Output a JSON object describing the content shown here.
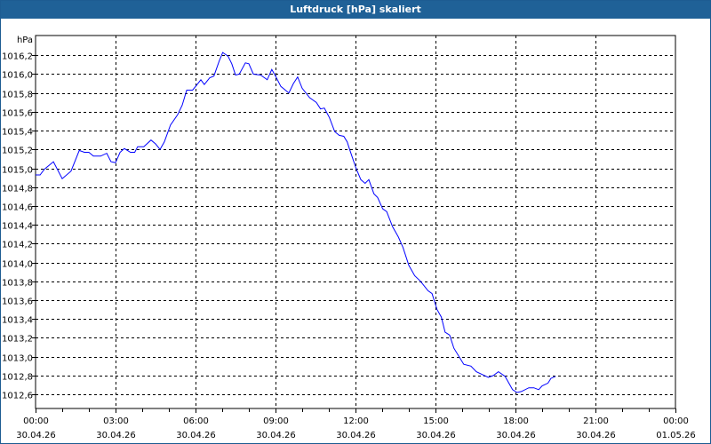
{
  "window": {
    "title": "Luftdruck [hPa] skaliert"
  },
  "chart_data": {
    "type": "line",
    "title": "Luftdruck [hPa] skaliert",
    "ylabel": "hPa",
    "xlabel": "",
    "ylim": [
      1012.45,
      1016.41
    ],
    "xlim_hours": [
      0,
      24
    ],
    "grid": true,
    "yticks": [
      1012.6,
      1012.8,
      1013.0,
      1013.2,
      1013.4,
      1013.6,
      1013.8,
      1014.0,
      1014.2,
      1014.4,
      1014.6,
      1014.8,
      1015.0,
      1015.2,
      1015.4,
      1015.6,
      1015.8,
      1016.0,
      1016.2
    ],
    "ytick_labels": [
      "1012,6",
      "1012,8",
      "1013,0",
      "1013,2",
      "1013,4",
      "1013,6",
      "1013,8",
      "1014,0",
      "1014,2",
      "1014,4",
      "1014,6",
      "1014,8",
      "1015,0",
      "1015,2",
      "1015,4",
      "1015,6",
      "1015,8",
      "1016,0",
      "1016,2"
    ],
    "xticks": [
      {
        "hour": 0,
        "time": "00:00",
        "date": "30.04.26"
      },
      {
        "hour": 3,
        "time": "03:00",
        "date": "30.04.26"
      },
      {
        "hour": 6,
        "time": "06:00",
        "date": "30.04.26"
      },
      {
        "hour": 9,
        "time": "09:00",
        "date": "30.04.26"
      },
      {
        "hour": 12,
        "time": "12:00",
        "date": "30.04.26"
      },
      {
        "hour": 15,
        "time": "15:00",
        "date": "30.04.26"
      },
      {
        "hour": 18,
        "time": "18:00",
        "date": "30.04.26"
      },
      {
        "hour": 21,
        "time": "21:00",
        "date": "30.04.26"
      },
      {
        "hour": 24,
        "time": "00:00",
        "date": "01.05.26"
      }
    ],
    "series": [
      {
        "name": "Luftdruck",
        "color": "#0000ff",
        "x": [
          0,
          0.17,
          0.33,
          0.67,
          1.0,
          1.33,
          1.64,
          1.83,
          2.0,
          2.17,
          2.44,
          2.67,
          2.83,
          3.0,
          3.17,
          3.33,
          3.56,
          3.72,
          3.83,
          4.06,
          4.33,
          4.5,
          4.67,
          4.83,
          5.06,
          5.33,
          5.5,
          5.67,
          5.89,
          6.06,
          6.2,
          6.33,
          6.53,
          6.69,
          6.89,
          7.02,
          7.22,
          7.36,
          7.5,
          7.64,
          7.87,
          8.0,
          8.17,
          8.44,
          8.69,
          8.86,
          9.0,
          9.2,
          9.5,
          9.67,
          9.83,
          10.0,
          10.28,
          10.53,
          10.69,
          10.83,
          11.02,
          11.22,
          11.39,
          11.56,
          11.69,
          11.78,
          12.02,
          12.2,
          12.36,
          12.5,
          12.69,
          12.83,
          13.02,
          13.17,
          13.39,
          13.61,
          13.78,
          14.0,
          14.22,
          14.44,
          14.72,
          14.87,
          15.06,
          15.22,
          15.36,
          15.53,
          15.69,
          16.06,
          16.33,
          16.53,
          16.98,
          17.17,
          17.36,
          17.61,
          17.89,
          18.06,
          18.22,
          18.5,
          18.69,
          18.87,
          19.0,
          19.22,
          19.33,
          19.5
        ],
        "values": [
          1014.93,
          1014.93,
          1014.99,
          1015.07,
          1014.89,
          1014.97,
          1015.19,
          1015.17,
          1015.17,
          1015.13,
          1015.13,
          1015.16,
          1015.07,
          1015.06,
          1015.17,
          1015.21,
          1015.17,
          1015.17,
          1015.23,
          1015.23,
          1015.3,
          1015.26,
          1015.2,
          1015.28,
          1015.46,
          1015.57,
          1015.67,
          1015.83,
          1015.83,
          1015.89,
          1015.94,
          1015.89,
          1015.96,
          1015.98,
          1016.14,
          1016.23,
          1016.19,
          1016.11,
          1015.99,
          1016.0,
          1016.12,
          1016.11,
          1016.0,
          1015.99,
          1015.94,
          1016.05,
          1015.98,
          1015.87,
          1015.8,
          1015.9,
          1015.97,
          1015.85,
          1015.75,
          1015.7,
          1015.63,
          1015.64,
          1015.54,
          1015.39,
          1015.35,
          1015.34,
          1015.28,
          1015.2,
          1015.0,
          1014.88,
          1014.84,
          1014.88,
          1014.73,
          1014.69,
          1014.57,
          1014.54,
          1014.38,
          1014.27,
          1014.16,
          1013.97,
          1013.86,
          1013.8,
          1013.7,
          1013.67,
          1013.5,
          1013.42,
          1013.26,
          1013.23,
          1013.09,
          1012.92,
          1012.9,
          1012.84,
          1012.78,
          1012.8,
          1012.84,
          1012.79,
          1012.65,
          1012.62,
          1012.63,
          1012.67,
          1012.67,
          1012.65,
          1012.69,
          1012.72,
          1012.77,
          1012.79
        ]
      }
    ]
  }
}
